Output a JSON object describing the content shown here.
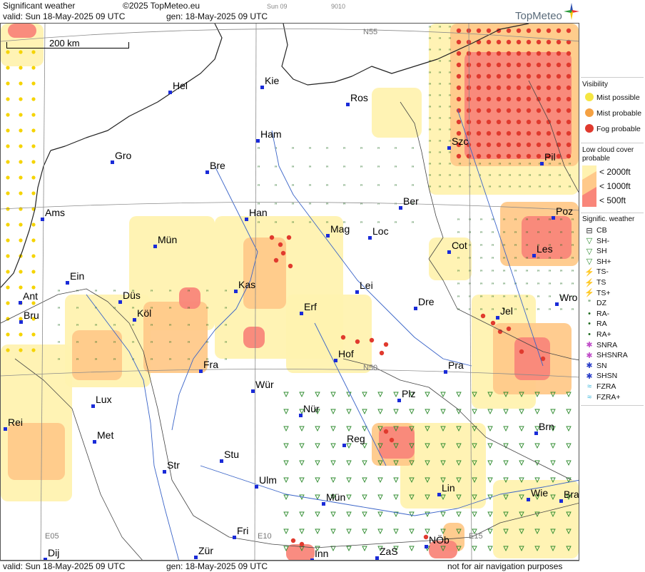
{
  "header": {
    "title": "Significant weather",
    "copyright": "©2025 TopMeteo.eu",
    "valid": "valid:  Sun  18-May-2025  09 UTC",
    "generated": "gen: 18-May-2025 09 UTC",
    "time_tab": "Sun 09",
    "code": "9010",
    "brand": "TopMeteo"
  },
  "footer": {
    "valid": "valid:  Sun  18-May-2025  09 UTC",
    "generated": "gen: 18-May-2025 09 UTC",
    "disclaimer": "not for air navigation purposes"
  },
  "scale": {
    "label": "200 km"
  },
  "grid_labels": {
    "n55": "N55",
    "n50": "N50",
    "e05": "E05",
    "e10": "E10",
    "e15": "E15"
  },
  "cities": [
    {
      "name": "Hel"
    },
    {
      "name": "Kie"
    },
    {
      "name": "Ros"
    },
    {
      "name": "Ham"
    },
    {
      "name": "Gro"
    },
    {
      "name": "Bre"
    },
    {
      "name": "Szc"
    },
    {
      "name": "Pil"
    },
    {
      "name": "Ams"
    },
    {
      "name": "Han"
    },
    {
      "name": "Ber"
    },
    {
      "name": "Poz"
    },
    {
      "name": "Mag"
    },
    {
      "name": "Loc"
    },
    {
      "name": "Mün"
    },
    {
      "name": "Cot"
    },
    {
      "name": "Les"
    },
    {
      "name": "Ein"
    },
    {
      "name": "Kas"
    },
    {
      "name": "Lei"
    },
    {
      "name": "Ant"
    },
    {
      "name": "Düs"
    },
    {
      "name": "Dre"
    },
    {
      "name": "Wro"
    },
    {
      "name": "Erf"
    },
    {
      "name": "Bru"
    },
    {
      "name": "Köl"
    },
    {
      "name": "Jel"
    },
    {
      "name": "Hof"
    },
    {
      "name": "Fra"
    },
    {
      "name": "Pra"
    },
    {
      "name": "Wür"
    },
    {
      "name": "Plz"
    },
    {
      "name": "Lux"
    },
    {
      "name": "Nür"
    },
    {
      "name": "Rei"
    },
    {
      "name": "Met"
    },
    {
      "name": "Reg"
    },
    {
      "name": "Brn"
    },
    {
      "name": "Stu"
    },
    {
      "name": "Str"
    },
    {
      "name": "Ulm"
    },
    {
      "name": "Lin"
    },
    {
      "name": "Mün"
    },
    {
      "name": "Wie"
    },
    {
      "name": "Bra"
    },
    {
      "name": "Fri"
    },
    {
      "name": "NÖb"
    },
    {
      "name": "Dij"
    },
    {
      "name": "Zür"
    },
    {
      "name": "Inn"
    },
    {
      "name": "ZaS"
    }
  ],
  "legend": {
    "visibility_title": "Visibility",
    "visibility": [
      {
        "label": "Mist possible",
        "color": "#f5e642"
      },
      {
        "label": "Mist probable",
        "color": "#f5a142"
      },
      {
        "label": "Fog probable",
        "color": "#e03a2e"
      }
    ],
    "lowcloud_title": "Low cloud cover probable",
    "lowcloud": [
      {
        "label": "< 2000ft",
        "color": "#fff2b0"
      },
      {
        "label": "< 1000ft",
        "color": "#ffc98a"
      },
      {
        "label": "<  500ft",
        "color": "#f9867a"
      }
    ],
    "sigwx_title": "Signific. weather",
    "sigwx": [
      {
        "label": "CB",
        "icon": "cb-icon",
        "color": "#222"
      },
      {
        "label": "SH-",
        "icon": "shower-light-icon",
        "color": "#2e8b2e"
      },
      {
        "label": "SH",
        "icon": "shower-icon",
        "color": "#2e8b2e"
      },
      {
        "label": "SH+",
        "icon": "shower-heavy-icon",
        "color": "#2e8b2e"
      },
      {
        "label": "TS-",
        "icon": "thunder-light-icon",
        "color": "#c0302a"
      },
      {
        "label": "TS",
        "icon": "thunder-icon",
        "color": "#c0302a"
      },
      {
        "label": "TS+",
        "icon": "thunder-heavy-icon",
        "color": "#c0302a"
      },
      {
        "label": "DZ",
        "icon": "drizzle-icon",
        "color": "#1f6b1f"
      },
      {
        "label": "RA-",
        "icon": "rain-light-icon",
        "color": "#1f6b1f"
      },
      {
        "label": "RA",
        "icon": "rain-icon",
        "color": "#1f6b1f"
      },
      {
        "label": "RA+",
        "icon": "rain-heavy-icon",
        "color": "#1f6b1f"
      },
      {
        "label": "SNRA",
        "icon": "sleet-icon",
        "color": "#c04cc8"
      },
      {
        "label": "SHSNRA",
        "icon": "sleet-shower-icon",
        "color": "#c04cc8"
      },
      {
        "label": "SN",
        "icon": "snow-icon",
        "color": "#2a3ec8"
      },
      {
        "label": "SHSN",
        "icon": "snow-shower-icon",
        "color": "#2a3ec8"
      },
      {
        "label": "FZRA",
        "icon": "freezing-rain-icon",
        "color": "#2ab0d8"
      },
      {
        "label": "FZRA+",
        "icon": "freezing-rain-heavy-icon",
        "color": "#2ab0d8"
      }
    ]
  }
}
